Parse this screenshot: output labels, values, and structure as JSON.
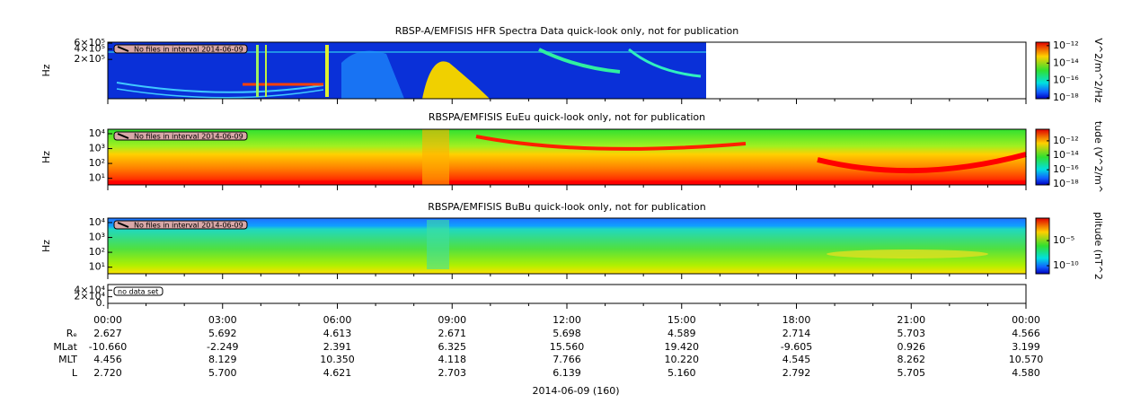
{
  "chart_data": [
    {
      "type": "spectrogram",
      "title": "RBSP-A/EMFISIS  HFR Spectra Data quick-look only, not for publication",
      "ylabel": "Hz",
      "ylog": true,
      "ylim": [
        14000,
        640000
      ],
      "yticks": [
        {
          "value": 600000,
          "label": "6×10⁵"
        },
        {
          "value": 400000,
          "label": "4×10⁵"
        },
        {
          "value": 200000,
          "label": "2×10⁵"
        }
      ],
      "notice": "No files in interval 2014-06-09",
      "colorbar_label": "V^2/m^2/Hz",
      "clim": [
        8e-19,
        2.5e-12
      ],
      "cticks": [
        {
          "value": 1e-12,
          "label": "10⁻¹²"
        },
        {
          "value": 1e-14,
          "label": "10⁻¹⁴"
        },
        {
          "value": 1e-16,
          "label": "10⁻¹⁶"
        },
        {
          "value": 1e-18,
          "label": "10⁻¹⁸"
        }
      ]
    },
    {
      "type": "spectrogram",
      "title": "RBSPA/EMFISIS  EuEu quick-look only, not for publication",
      "ylabel": "Hz",
      "ylog": true,
      "ylim": [
        3.6,
        20000
      ],
      "yticks": [
        {
          "value": 10000,
          "label": "10⁴"
        },
        {
          "value": 1000,
          "label": "10³"
        },
        {
          "value": 100,
          "label": "10²"
        },
        {
          "value": 10,
          "label": "10¹"
        }
      ],
      "notice": "No files in interval 2014-06-09",
      "colorbar_label": "tude (V^2/m^",
      "clim": [
        8e-19,
        4e-11
      ],
      "cticks": [
        {
          "value": 1e-12,
          "label": "10⁻¹²"
        },
        {
          "value": 1e-14,
          "label": "10⁻¹⁴"
        },
        {
          "value": 1e-16,
          "label": "10⁻¹⁶"
        },
        {
          "value": 1e-18,
          "label": "10⁻¹⁸"
        }
      ]
    },
    {
      "type": "spectrogram",
      "title": "RBSPA/EMFISIS  BuBu quick-look only, not for publication",
      "ylabel": "Hz",
      "ylog": true,
      "ylim": [
        3.6,
        20000
      ],
      "yticks": [
        {
          "value": 10000,
          "label": "10⁴"
        },
        {
          "value": 1000,
          "label": "10³"
        },
        {
          "value": 100,
          "label": "10²"
        },
        {
          "value": 10,
          "label": "10¹"
        }
      ],
      "notice": "No files in interval 2014-06-09",
      "colorbar_label": "plitude (nT^2",
      "clim": [
        2.5e-12,
        0.3
      ],
      "cticks": [
        {
          "value": 1e-05,
          "label": "10⁻⁵"
        },
        {
          "value": 1e-10,
          "label": "10⁻¹⁰"
        }
      ]
    },
    {
      "type": "line",
      "ylog": false,
      "ylim": [
        0,
        57000
      ],
      "yticks": [
        {
          "value": 40000,
          "label": "4×10⁴"
        },
        {
          "value": 20000,
          "label": "2×10⁴"
        },
        {
          "value": 0,
          "label": "0."
        }
      ],
      "notice": "no data set"
    }
  ],
  "x_axis": {
    "xlim": [
      0,
      24
    ],
    "xticks": [
      {
        "value": 0,
        "label": "00:00"
      },
      {
        "value": 3,
        "label": "03:00"
      },
      {
        "value": 6,
        "label": "06:00"
      },
      {
        "value": 9,
        "label": "09:00"
      },
      {
        "value": 12,
        "label": "12:00"
      },
      {
        "value": 15,
        "label": "15:00"
      },
      {
        "value": 18,
        "label": "18:00"
      },
      {
        "value": 21,
        "label": "21:00"
      },
      {
        "value": 24,
        "label": "00:00"
      }
    ],
    "xminorticks": [
      1,
      2,
      4,
      5,
      7,
      8,
      10,
      11,
      13,
      14,
      16,
      17,
      19,
      20,
      22,
      23
    ],
    "xlabel": "2014-06-09 (160)"
  },
  "ephemeris": [
    {
      "name": "Rₑ",
      "values": [
        2.627,
        5.692,
        4.613,
        2.671,
        5.698,
        4.589,
        2.714,
        5.703,
        4.566
      ],
      "value_labels": [
        "2.627",
        "5.692",
        "4.613",
        "2.671",
        "5.698",
        "4.589",
        "2.714",
        "5.703",
        "4.566"
      ]
    },
    {
      "name": "MLat",
      "values": [
        -10.66,
        -2.249,
        2.391,
        6.325,
        15.56,
        19.42,
        -9.605,
        0.926,
        3.199
      ],
      "value_labels": [
        "-10.660",
        "-2.249",
        "2.391",
        "6.325",
        "15.560",
        "19.420",
        "-9.605",
        "0.926",
        "3.199"
      ]
    },
    {
      "name": "MLT",
      "values": [
        4.456,
        8.129,
        10.35,
        4.118,
        7.766,
        10.22,
        4.545,
        8.262,
        10.57
      ],
      "value_labels": [
        "4.456",
        "8.129",
        "10.350",
        "4.118",
        "7.766",
        "10.220",
        "4.545",
        "8.262",
        "10.570"
      ]
    },
    {
      "name": "L",
      "values": [
        2.72,
        5.7,
        4.621,
        2.703,
        6.139,
        5.16,
        2.792,
        5.705,
        4.58
      ],
      "value_labels": [
        "2.720",
        "5.700",
        "4.621",
        "2.703",
        "6.139",
        "5.160",
        "2.792",
        "5.705",
        "4.580"
      ]
    }
  ]
}
